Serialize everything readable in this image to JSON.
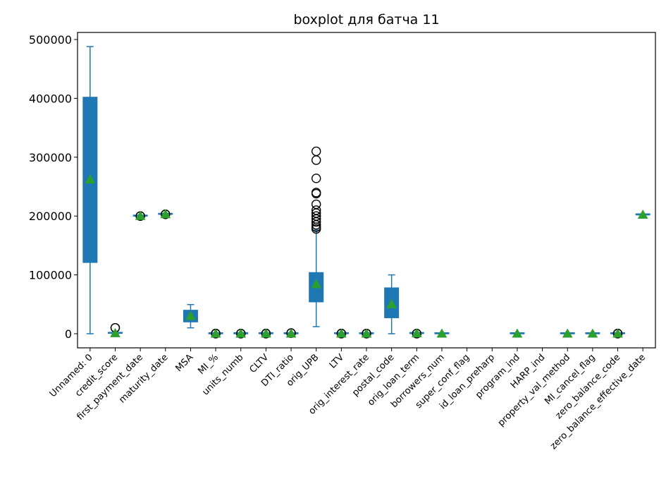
{
  "chart_data": {
    "type": "boxplot",
    "title": "boxplot для батча 11",
    "xlabel": "",
    "ylabel": "",
    "ylim": [
      -24000,
      512000
    ],
    "yticks": [
      {
        "value": 0,
        "label": "0"
      },
      {
        "value": 100000,
        "label": "100000"
      },
      {
        "value": 200000,
        "label": "200000"
      },
      {
        "value": 300000,
        "label": "300000"
      },
      {
        "value": 400000,
        "label": "400000"
      },
      {
        "value": 500000,
        "label": "500000"
      }
    ],
    "grid": false,
    "legend": "none",
    "colors": {
      "box": "#1f77b4",
      "mean": "#2ca02c",
      "outlier": "#000000",
      "axis": "#000000"
    },
    "categories": [
      {
        "label": "Unnamed: 0",
        "box": {
          "whislo": 0,
          "q1": 121000,
          "med": 262000,
          "q3": 402000,
          "whishi": 488000
        },
        "mean": 262000,
        "fliers": []
      },
      {
        "label": "credit_score",
        "box": {
          "whislo": 700,
          "q1": 700,
          "med": 750,
          "q3": 790,
          "whishi": 830
        },
        "mean": 750,
        "fliers": [
          9999,
          9999
        ]
      },
      {
        "label": "first_payment_date",
        "box": {
          "whislo": 199900,
          "q1": 199900,
          "med": 199900,
          "q3": 199900,
          "whishi": 199900
        },
        "mean": 199900,
        "fliers": [
          199900,
          200000
        ]
      },
      {
        "label": "maturity_date",
        "box": {
          "whislo": 202900,
          "q1": 202900,
          "med": 202900,
          "q3": 202900,
          "whishi": 202900
        },
        "mean": 202900,
        "fliers": [
          202900,
          203000
        ]
      },
      {
        "label": "MSA",
        "box": {
          "whislo": 10000,
          "q1": 20000,
          "med": 31000,
          "q3": 40000,
          "whishi": 49500
        },
        "mean": 30000,
        "fliers": []
      },
      {
        "label": "MI_%",
        "box": {
          "whislo": 0,
          "q1": 0,
          "med": 0,
          "q3": 0,
          "whishi": 0
        },
        "mean": 0,
        "fliers": [
          0,
          500
        ]
      },
      {
        "label": "units_numb",
        "box": {
          "whislo": 1,
          "q1": 1,
          "med": 1,
          "q3": 1,
          "whishi": 1
        },
        "mean": 1,
        "fliers": [
          0,
          400
        ]
      },
      {
        "label": "CLTV",
        "box": {
          "whislo": 80,
          "q1": 80,
          "med": 80,
          "q3": 80,
          "whishi": 80
        },
        "mean": 80,
        "fliers": [
          0,
          500
        ]
      },
      {
        "label": "DTI_ratio",
        "box": {
          "whislo": 30,
          "q1": 30,
          "med": 30,
          "q3": 30,
          "whishi": 30
        },
        "mean": 30,
        "fliers": [
          900,
          1200
        ]
      },
      {
        "label": "orig_UPB",
        "box": {
          "whislo": 12000,
          "q1": 54000,
          "med": 82000,
          "q3": 104000,
          "whishi": 176000
        },
        "mean": 84000,
        "fliers": [
          178000,
          181000,
          185000,
          190000,
          195000,
          200000,
          205000,
          210000,
          220000,
          238000,
          240000,
          264000,
          295000,
          310000
        ]
      },
      {
        "label": "LTV",
        "box": {
          "whislo": 80,
          "q1": 80,
          "med": 80,
          "q3": 80,
          "whishi": 80
        },
        "mean": 80,
        "fliers": [
          0,
          500
        ]
      },
      {
        "label": "orig_interest_rate",
        "box": {
          "whislo": 7,
          "q1": 7,
          "med": 7,
          "q3": 7,
          "whishi": 7
        },
        "mean": 7,
        "fliers": [
          0,
          400
        ]
      },
      {
        "label": "postal_code",
        "box": {
          "whislo": 0,
          "q1": 27000,
          "med": 50000,
          "q3": 78000,
          "whishi": 100000
        },
        "mean": 50000,
        "fliers": []
      },
      {
        "label": "orig_loan_term",
        "box": {
          "whislo": 360,
          "q1": 360,
          "med": 360,
          "q3": 360,
          "whishi": 360
        },
        "mean": 360,
        "fliers": [
          0,
          300
        ]
      },
      {
        "label": "borrowers_num",
        "box": {
          "whislo": 1,
          "q1": 1,
          "med": 1,
          "q3": 1,
          "whishi": 1
        },
        "mean": 1,
        "fliers": []
      },
      {
        "label": "super_conf_flag",
        "box": null,
        "mean": null,
        "fliers": []
      },
      {
        "label": "id_loan_preharp",
        "box": null,
        "mean": null,
        "fliers": []
      },
      {
        "label": "program_ind",
        "box": {
          "whislo": 9,
          "q1": 9,
          "med": 9,
          "q3": 9,
          "whishi": 9
        },
        "mean": 9,
        "fliers": []
      },
      {
        "label": "HARP_ind",
        "box": null,
        "mean": null,
        "fliers": []
      },
      {
        "label": "property_val_method",
        "box": {
          "whislo": 2,
          "q1": 2,
          "med": 2,
          "q3": 2,
          "whishi": 2
        },
        "mean": 2,
        "fliers": []
      },
      {
        "label": "MI_cancel_flag",
        "box": {
          "whislo": 7,
          "q1": 7,
          "med": 7,
          "q3": 7,
          "whishi": 7
        },
        "mean": 7,
        "fliers": []
      },
      {
        "label": "zero_balance_code",
        "box": {
          "whislo": 1,
          "q1": 1,
          "med": 1,
          "q3": 1,
          "whishi": 1
        },
        "mean": 1,
        "fliers": [
          0,
          500
        ]
      },
      {
        "label": "zero_balance_effective_date",
        "box": {
          "whislo": 202100,
          "q1": 202100,
          "med": 202100,
          "q3": 202100,
          "whishi": 202100
        },
        "mean": 202100,
        "fliers": []
      }
    ]
  }
}
